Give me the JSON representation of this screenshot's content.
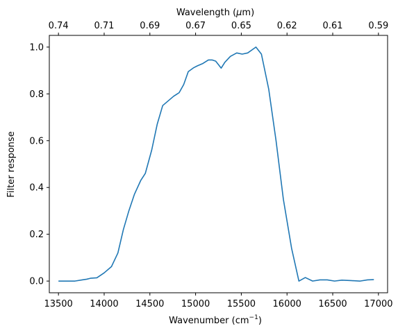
{
  "chart_data": {
    "type": "line",
    "xlabel": "Wavenumber (cm",
    "xlabel_sup": "−1",
    "xlabel_tail": ")",
    "ylabel": "Filter response",
    "top_label_prefix": "Wavelength (",
    "top_label_mu": "μ",
    "top_label_suffix": "m)",
    "xlim": [
      13400,
      17100
    ],
    "ylim": [
      -0.05,
      1.05
    ],
    "xticks": [
      13500,
      14000,
      14500,
      15000,
      15500,
      16000,
      16500,
      17000
    ],
    "yticks": [
      0.0,
      0.2,
      0.4,
      0.6,
      0.8,
      1.0
    ],
    "ytick_labels": [
      "0.0",
      "0.2",
      "0.4",
      "0.6",
      "0.8",
      "1.0"
    ],
    "top_ticks": [
      {
        "label": "0.74",
        "x": 13500
      },
      {
        "label": "0.71",
        "x": 14000
      },
      {
        "label": "0.69",
        "x": 14500
      },
      {
        "label": "0.67",
        "x": 15000
      },
      {
        "label": "0.65",
        "x": 15500
      },
      {
        "label": "0.62",
        "x": 16000
      },
      {
        "label": "0.61",
        "x": 16500
      },
      {
        "label": "0.59",
        "x": 17000
      }
    ],
    "line_color": "#1f77b4",
    "series": [
      {
        "x": [
          13500,
          13580,
          13680,
          13760,
          13810,
          13850,
          13920,
          14000,
          14080,
          14150,
          14210,
          14270,
          14330,
          14400,
          14450,
          14520,
          14580,
          14640,
          14700,
          14760,
          14820,
          14870,
          14920,
          14980,
          15020,
          15080,
          15140,
          15180,
          15220,
          15280,
          15320,
          15380,
          15450,
          15510,
          15570,
          15660,
          15720,
          15800,
          15880,
          15960,
          16050,
          16130,
          16200,
          16280,
          16360,
          16440,
          16520,
          16600,
          16700,
          16800,
          16880,
          16950
        ],
        "y": [
          0.0,
          0.0,
          0.0,
          0.005,
          0.008,
          0.012,
          0.014,
          0.035,
          0.062,
          0.12,
          0.22,
          0.3,
          0.37,
          0.43,
          0.46,
          0.56,
          0.67,
          0.75,
          0.77,
          0.79,
          0.805,
          0.84,
          0.895,
          0.912,
          0.92,
          0.93,
          0.945,
          0.945,
          0.94,
          0.91,
          0.935,
          0.96,
          0.975,
          0.97,
          0.975,
          1.0,
          0.97,
          0.82,
          0.6,
          0.35,
          0.14,
          0.0,
          0.015,
          0.0,
          0.005,
          0.005,
          0.0,
          0.004,
          0.002,
          0.0,
          0.005,
          0.006
        ]
      }
    ]
  }
}
